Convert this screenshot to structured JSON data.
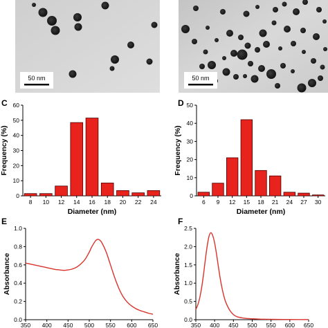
{
  "figure": {
    "panels": {
      "A": {
        "label": "",
        "scale_bar": "50 nm"
      },
      "B": {
        "label": "",
        "scale_bar": "50 nm"
      },
      "C": {
        "label": "C"
      },
      "D": {
        "label": "D"
      },
      "E": {
        "label": "E"
      },
      "F": {
        "label": "F"
      }
    }
  },
  "colors": {
    "bar_fill": "#e8221c",
    "bar_stroke": "#4a0000",
    "curve": "#d9322a",
    "tem_bg_a": "#d7d7d7",
    "tem_bg_b": "#cfcfcf",
    "particle": "#141414"
  },
  "chart_data": [
    {
      "panel": "C",
      "type": "bar",
      "categories": [
        "8",
        "10",
        "12",
        "14",
        "16",
        "18",
        "20",
        "22",
        "24"
      ],
      "values": [
        1.5,
        1.5,
        6.5,
        48.5,
        51.5,
        8.5,
        3.5,
        2,
        3.5
      ],
      "xlabel": "Diameter (nm)",
      "ylabel": "Frequency (%)",
      "ylim": [
        0,
        60
      ],
      "yticks": [
        "0",
        "10",
        "20",
        "30",
        "40",
        "50",
        "60"
      ]
    },
    {
      "panel": "D",
      "type": "bar",
      "categories": [
        "6",
        "9",
        "12",
        "15",
        "18",
        "21",
        "24",
        "27",
        "30"
      ],
      "values": [
        2,
        7,
        21,
        42,
        14,
        11,
        2,
        1.5,
        0.5
      ],
      "xlabel": "Diameter (nm)",
      "ylabel": "Frequency (%)",
      "ylim": [
        0,
        50
      ],
      "yticks": [
        "0",
        "10",
        "20",
        "30",
        "40",
        "50"
      ]
    },
    {
      "panel": "E",
      "type": "line",
      "x": [
        350,
        360,
        370,
        380,
        390,
        400,
        410,
        420,
        430,
        440,
        450,
        460,
        470,
        480,
        490,
        500,
        505,
        510,
        515,
        520,
        525,
        530,
        540,
        550,
        560,
        570,
        580,
        590,
        600,
        610,
        620,
        630,
        640,
        650
      ],
      "y": [
        0.62,
        0.61,
        0.6,
        0.59,
        0.58,
        0.57,
        0.56,
        0.55,
        0.545,
        0.54,
        0.545,
        0.555,
        0.575,
        0.61,
        0.66,
        0.74,
        0.79,
        0.83,
        0.865,
        0.88,
        0.87,
        0.84,
        0.74,
        0.6,
        0.46,
        0.34,
        0.25,
        0.19,
        0.15,
        0.12,
        0.1,
        0.085,
        0.07,
        0.06
      ],
      "xlabel": "",
      "ylabel": "Absorbance",
      "xlim": [
        350,
        650
      ],
      "ylim": [
        0,
        1.0
      ],
      "xticks": [
        "350",
        "400",
        "450",
        "500",
        "550",
        "600",
        "650"
      ],
      "yticks": [
        "0.0",
        "0.2",
        "0.4",
        "0.6",
        "0.8",
        "1.0"
      ]
    },
    {
      "panel": "F",
      "type": "line",
      "x": [
        350,
        355,
        360,
        365,
        370,
        375,
        380,
        385,
        390,
        395,
        400,
        405,
        410,
        415,
        420,
        425,
        430,
        440,
        450,
        460,
        480,
        500,
        520,
        550,
        600,
        650
      ],
      "y": [
        0.28,
        0.4,
        0.58,
        0.85,
        1.2,
        1.62,
        2.0,
        2.28,
        2.38,
        2.3,
        2.1,
        1.8,
        1.45,
        1.12,
        0.85,
        0.63,
        0.47,
        0.26,
        0.14,
        0.08,
        0.04,
        0.025,
        0.015,
        0.01,
        0.005,
        0.003
      ],
      "xlabel": "",
      "ylabel": "Absorbance",
      "xlim": [
        350,
        650
      ],
      "ylim": [
        0,
        2.5
      ],
      "xticks": [
        "350",
        "400",
        "450",
        "500",
        "550",
        "600",
        "650"
      ],
      "yticks": [
        "0.0",
        "0.5",
        "1.0",
        "1.5",
        "2.0",
        "2.5"
      ]
    }
  ]
}
